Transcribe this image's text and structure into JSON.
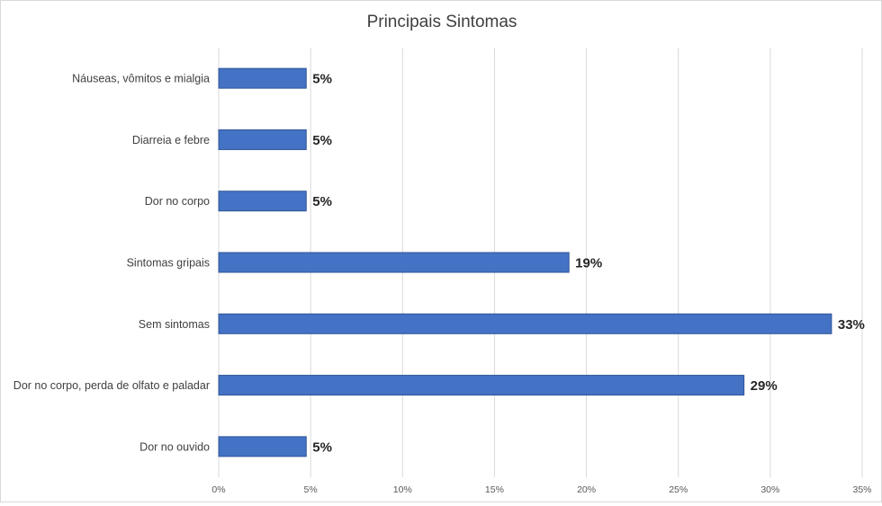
{
  "chart_data": {
    "type": "bar",
    "orientation": "horizontal",
    "title": "Principais Sintomas",
    "xlabel": "",
    "ylabel": "",
    "categories": [
      "Náuseas, vômitos e mialgia",
      "Diarreia e febre",
      "Dor no corpo",
      "Sintomas gripais",
      "Sem sintomas",
      "Dor no corpo, perda de olfato e paladar",
      "Dor no ouvido"
    ],
    "values": [
      4.76,
      4.76,
      4.76,
      19.05,
      33.33,
      28.57,
      4.76
    ],
    "data_labels": [
      "5%",
      "5%",
      "5%",
      "19%",
      "33%",
      "29%",
      "5%"
    ],
    "xlim": [
      0,
      35
    ],
    "ticks": [
      0,
      5,
      10,
      15,
      20,
      25,
      30,
      35
    ],
    "tick_labels": [
      "0%",
      "5%",
      "10%",
      "15%",
      "20%",
      "25%",
      "30%",
      "35%"
    ],
    "grid": true,
    "legend": "none",
    "bar_color": "#4472c4"
  }
}
